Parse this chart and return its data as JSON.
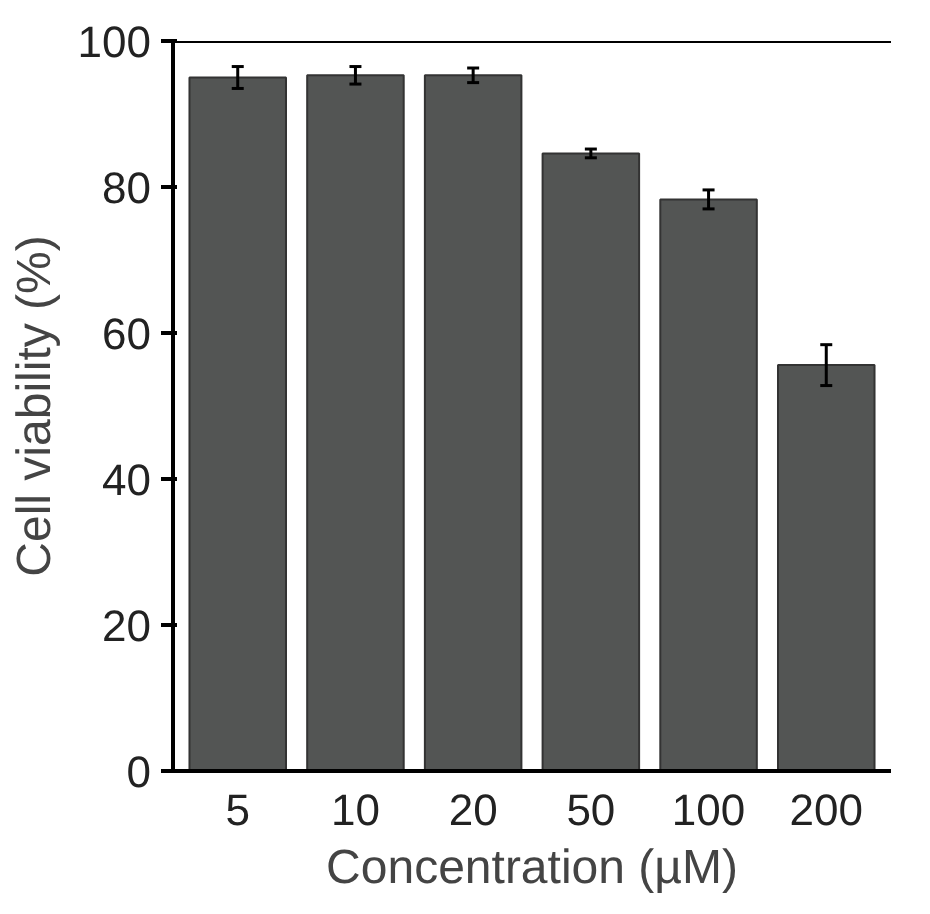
{
  "chart_data": {
    "type": "bar",
    "xlabel": "Concentration (µM)",
    "ylabel": "Cell viability (%)",
    "categories": [
      "5",
      "10",
      "20",
      "50",
      "100",
      "200"
    ],
    "values": [
      95.0,
      95.3,
      95.3,
      84.6,
      78.3,
      55.6
    ],
    "errors": [
      1.5,
      1.2,
      1.0,
      0.6,
      1.3,
      2.8
    ],
    "color": "#535554",
    "ylim": [
      0,
      100
    ],
    "yticks": [
      0,
      20,
      40,
      60,
      80,
      100
    ],
    "grid": false
  }
}
